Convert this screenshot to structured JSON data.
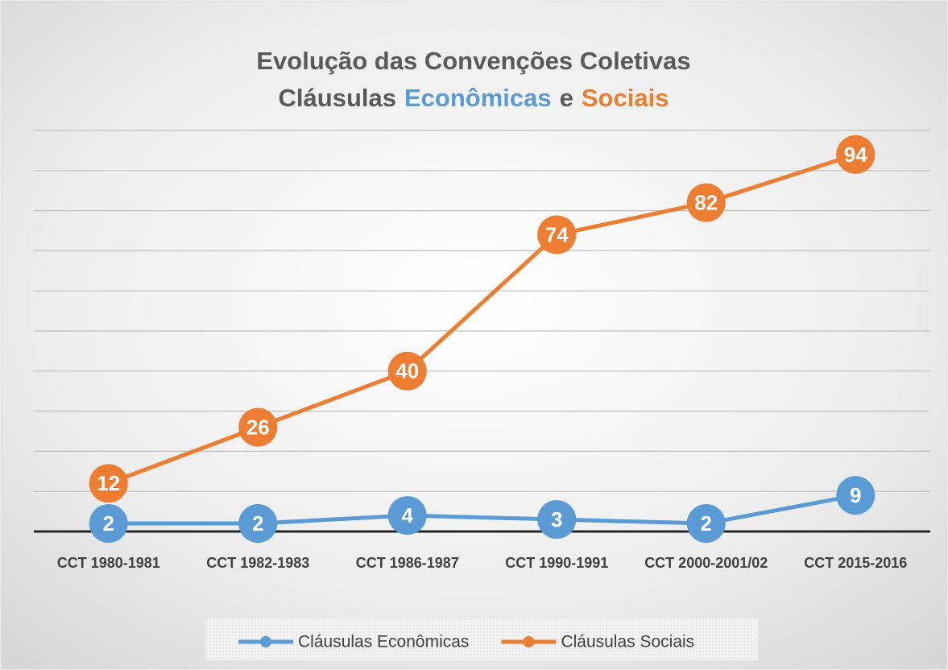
{
  "chart_data": {
    "type": "line",
    "title": "Evolução das Convenções Coletivas",
    "subtitle": [
      {
        "text": "Cláusulas",
        "color": "#595959"
      },
      {
        "text": "Econômicas",
        "color": "#5b9bd5"
      },
      {
        "text": "e",
        "color": "#595959"
      },
      {
        "text": "Sociais",
        "color": "#ed7d31"
      }
    ],
    "categories": [
      "CCT 1980-1981",
      "CCT 1982-1983",
      "CCT 1986-1987",
      "CCT 1990-1991",
      "CCT 2000-2001/02",
      "CCT 2015-2016"
    ],
    "series": [
      {
        "name": "Cláusulas Econômicas",
        "color": "#5b9bd5",
        "values": [
          2,
          2,
          4,
          3,
          2,
          9
        ]
      },
      {
        "name": "Cláusulas Sociais",
        "color": "#ed7d31",
        "values": [
          12,
          26,
          40,
          74,
          82,
          94
        ]
      }
    ],
    "ylim": [
      0,
      100
    ],
    "yticks": [
      0,
      10,
      20,
      30,
      40,
      50,
      60,
      70,
      80,
      90,
      100
    ],
    "grid": true,
    "legend": "bottom"
  }
}
